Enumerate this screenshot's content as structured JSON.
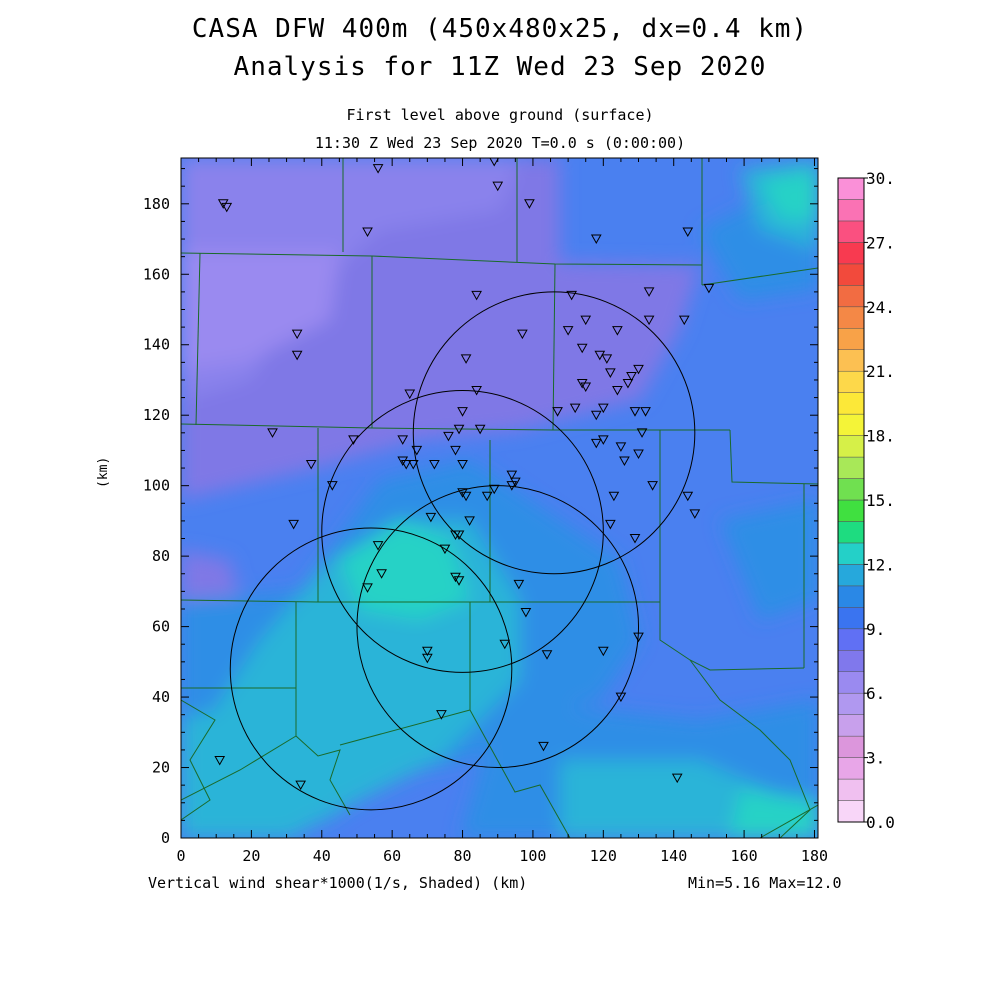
{
  "header": {
    "title_line1": "CASA DFW 400m (450x480x25, dx=0.4 km)",
    "title_line2": "Analysis for 11Z Wed 23 Sep 2020",
    "subtitle_level": "First level above ground (surface)",
    "subtitle_time": "11:30 Z Wed 23 Sep 2020   T=0.0 s (0:00:00)"
  },
  "footer": {
    "variable_label": "Vertical wind shear*1000(1/s, Shaded)  (km)",
    "range_label": "Min=5.16 Max=12.0"
  },
  "map": {
    "x_axis_ticks": [
      "0",
      "20",
      "40",
      "60",
      "80",
      "100",
      "120",
      "140",
      "160",
      "180"
    ],
    "y_axis_ticks": [
      "0",
      "20",
      "40",
      "60",
      "80",
      "100",
      "120",
      "140",
      "160",
      "180"
    ],
    "y_axis_label": "(km)",
    "x_range_km": [
      0,
      181
    ],
    "y_range_km": [
      0,
      193
    ],
    "boundary_color": "#1a6a2a",
    "radar_ring_color": "#000000",
    "station_marker": "triangle-down",
    "radar_rings": [
      {
        "center_km": [
          54,
          48
        ],
        "radius_km": 40
      },
      {
        "center_km": [
          80,
          87
        ],
        "radius_km": 40
      },
      {
        "center_km": [
          90,
          60
        ],
        "radius_km": 40
      },
      {
        "center_km": [
          106,
          115
        ],
        "radius_km": 40
      }
    ],
    "stations": [
      [
        12,
        180
      ],
      [
        13,
        179
      ],
      [
        56,
        190
      ],
      [
        53,
        172
      ],
      [
        89,
        192
      ],
      [
        90,
        185
      ],
      [
        99,
        180
      ],
      [
        118,
        170
      ],
      [
        144,
        172
      ],
      [
        150,
        156
      ],
      [
        33,
        143
      ],
      [
        33,
        137
      ],
      [
        34,
        15
      ],
      [
        26,
        115
      ],
      [
        37,
        106
      ],
      [
        43,
        100
      ],
      [
        32,
        89
      ],
      [
        49,
        113
      ],
      [
        65,
        126
      ],
      [
        63,
        113
      ],
      [
        63,
        107
      ],
      [
        64,
        106
      ],
      [
        66,
        106
      ],
      [
        67,
        110
      ],
      [
        72,
        106
      ],
      [
        76,
        114
      ],
      [
        78,
        110
      ],
      [
        79,
        116
      ],
      [
        80,
        106
      ],
      [
        80,
        98
      ],
      [
        81,
        97
      ],
      [
        80,
        121
      ],
      [
        81,
        136
      ],
      [
        84,
        154
      ],
      [
        84,
        127
      ],
      [
        85,
        116
      ],
      [
        87,
        97
      ],
      [
        89,
        99
      ],
      [
        94,
        103
      ],
      [
        94,
        100
      ],
      [
        95,
        101
      ],
      [
        97,
        143
      ],
      [
        107,
        121
      ],
      [
        110,
        144
      ],
      [
        111,
        154
      ],
      [
        112,
        122
      ],
      [
        114,
        139
      ],
      [
        114,
        129
      ],
      [
        115,
        128
      ],
      [
        115,
        147
      ],
      [
        118,
        112
      ],
      [
        118,
        120
      ],
      [
        119,
        137
      ],
      [
        120,
        113
      ],
      [
        120,
        122
      ],
      [
        121,
        136
      ],
      [
        122,
        132
      ],
      [
        122,
        89
      ],
      [
        123,
        97
      ],
      [
        124,
        144
      ],
      [
        124,
        127
      ],
      [
        125,
        111
      ],
      [
        126,
        107
      ],
      [
        127,
        129
      ],
      [
        128,
        131
      ],
      [
        129,
        121
      ],
      [
        130,
        133
      ],
      [
        130,
        109
      ],
      [
        131,
        115
      ],
      [
        132,
        121
      ],
      [
        133,
        155
      ],
      [
        133,
        147
      ],
      [
        134,
        100
      ],
      [
        143,
        147
      ],
      [
        144,
        97
      ],
      [
        146,
        92
      ],
      [
        129,
        85
      ],
      [
        130,
        57
      ],
      [
        125,
        40
      ],
      [
        120,
        53
      ],
      [
        104,
        52
      ],
      [
        103,
        26
      ],
      [
        96,
        72
      ],
      [
        98,
        64
      ],
      [
        92,
        55
      ],
      [
        82,
        90
      ],
      [
        79,
        86
      ],
      [
        78,
        86
      ],
      [
        78,
        74
      ],
      [
        79,
        73
      ],
      [
        71,
        91
      ],
      [
        75,
        82
      ],
      [
        56,
        83
      ],
      [
        57,
        75
      ],
      [
        53,
        71
      ],
      [
        70,
        53
      ],
      [
        70,
        51
      ],
      [
        74,
        35
      ],
      [
        11,
        22
      ],
      [
        141,
        17
      ]
    ]
  },
  "colorbar": {
    "labels": [
      "30.",
      "27.",
      "24.",
      "21.",
      "18.",
      "15.",
      "12.",
      "9.",
      "6.",
      "3.",
      "0.0"
    ],
    "min": 0,
    "max": 30,
    "colors": [
      "#f8d6f8",
      "#f0c0f0",
      "#e8a6e8",
      "#dc96dc",
      "#c8a0ec",
      "#b098f0",
      "#9a8af0",
      "#8078ec",
      "#6070f4",
      "#3a74f0",
      "#2a88e6",
      "#26a8dc",
      "#24d0c8",
      "#1edc80",
      "#40e040",
      "#70e050",
      "#a8e858",
      "#d6f048",
      "#f4f438",
      "#fce838",
      "#fdd84a",
      "#fcc052",
      "#f8a248",
      "#f48846",
      "#f26c42",
      "#f24a3c",
      "#f83a50",
      "#fa5080",
      "#fa72b4",
      "#fa90d8"
    ]
  },
  "field_colors": {
    "shear_5_6": "#9a8af0",
    "shear_6_7": "#8a82ec",
    "shear_7_8": "#7f78e6",
    "shear_8_9": "#6478ee",
    "shear_9_10": "#4a80f0",
    "shear_10_11": "#2f8ee6",
    "shear_11_12": "#2cb4d8",
    "shear_12": "#26d2c6"
  }
}
